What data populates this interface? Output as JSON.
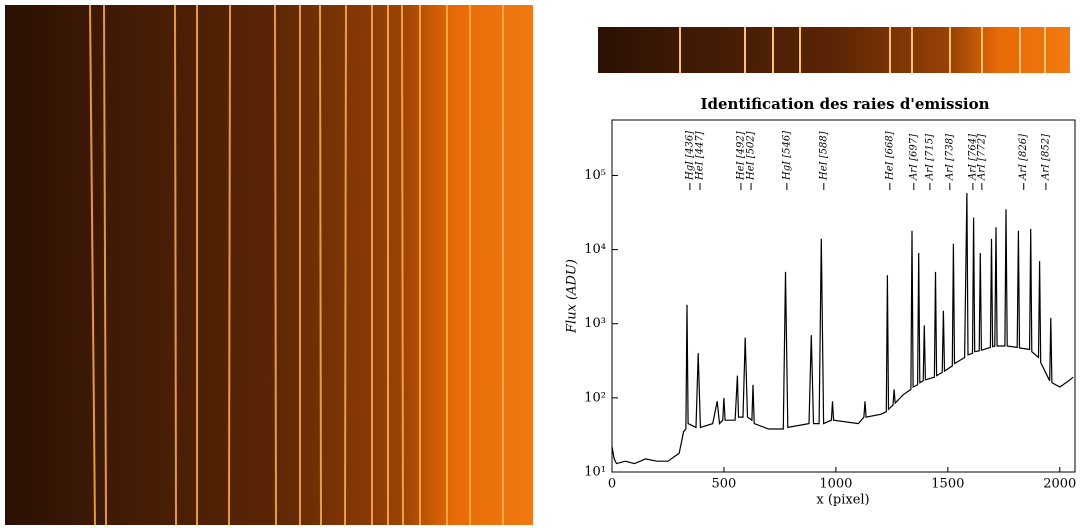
{
  "chart_data": {
    "type": "line",
    "title": "Identification des raies d'emission",
    "x_label": "x (pixel)",
    "y_label": "Flux (ADU)",
    "color": "#000000",
    "log_y": true,
    "xlim": [
      0,
      2068
    ],
    "ylim": [
      10,
      560000
    ],
    "xticks": [
      0,
      500,
      1000,
      1500,
      2000
    ],
    "yticks": [
      {
        "value": 10,
        "label": "10¹"
      },
      {
        "value": 100,
        "label": "10²"
      },
      {
        "value": 1000,
        "label": "10³"
      },
      {
        "value": 10000,
        "label": "10⁴"
      },
      {
        "value": 100000,
        "label": "10⁵"
      }
    ],
    "x": [
      0,
      10,
      20,
      60,
      100,
      150,
      200,
      250,
      300,
      320,
      330,
      335,
      340,
      375,
      385,
      395,
      450,
      470,
      480,
      495,
      500,
      505,
      550,
      560,
      565,
      585,
      595,
      605,
      625,
      630,
      635,
      700,
      765,
      775,
      785,
      880,
      890,
      900,
      925,
      935,
      945,
      980,
      985,
      990,
      1100,
      1125,
      1130,
      1135,
      1200,
      1225,
      1230,
      1235,
      1255,
      1260,
      1265,
      1300,
      1335,
      1340,
      1345,
      1365,
      1370,
      1375,
      1390,
      1395,
      1400,
      1440,
      1445,
      1450,
      1475,
      1480,
      1485,
      1520,
      1525,
      1530,
      1575,
      1585,
      1590,
      1610,
      1615,
      1620,
      1640,
      1645,
      1650,
      1690,
      1695,
      1700,
      1710,
      1715,
      1720,
      1755,
      1760,
      1765,
      1810,
      1815,
      1820,
      1865,
      1870,
      1875,
      1905,
      1910,
      1915,
      1955,
      1960,
      1965,
      2000,
      2040,
      2060
    ],
    "values": [
      22,
      15,
      13,
      14,
      13,
      15,
      14,
      14,
      18,
      35,
      38,
      1800,
      45,
      40,
      400,
      40,
      45,
      90,
      45,
      50,
      100,
      50,
      50,
      200,
      55,
      55,
      650,
      55,
      50,
      150,
      45,
      38,
      38,
      5000,
      40,
      45,
      700,
      45,
      45,
      14000,
      45,
      50,
      90,
      50,
      45,
      55,
      90,
      55,
      60,
      65,
      4500,
      70,
      80,
      130,
      85,
      110,
      130,
      18000,
      140,
      150,
      9000,
      160,
      170,
      950,
      175,
      190,
      5000,
      200,
      220,
      1500,
      230,
      270,
      12000,
      290,
      350,
      58000,
      380,
      400,
      27000,
      420,
      430,
      9000,
      440,
      480,
      14000,
      490,
      500,
      20000,
      500,
      500,
      35000,
      500,
      480,
      18000,
      470,
      450,
      19000,
      420,
      350,
      7000,
      300,
      170,
      1200,
      160,
      140,
      170,
      190
    ],
    "annotations": [
      {
        "text": "HgI [436]",
        "x": 348
      },
      {
        "text": "HeI [447]",
        "x": 393
      },
      {
        "text": "HeI [492]",
        "x": 576
      },
      {
        "text": "HeI [502]",
        "x": 621
      },
      {
        "text": "HgI [546]",
        "x": 781
      },
      {
        "text": "HeI [588]",
        "x": 946
      },
      {
        "text": "HeI [668]",
        "x": 1241
      },
      {
        "text": "ArI [697]",
        "x": 1348
      },
      {
        "text": "ArI [715]",
        "x": 1420
      },
      {
        "text": "ArI [738]",
        "x": 1509
      },
      {
        "text": "ArI [764]",
        "x": 1612
      },
      {
        "text": "ArI [772]",
        "x": 1652
      },
      {
        "text": "ArI [826]",
        "x": 1839
      },
      {
        "text": "ArI [852]",
        "x": 1938
      }
    ]
  }
}
